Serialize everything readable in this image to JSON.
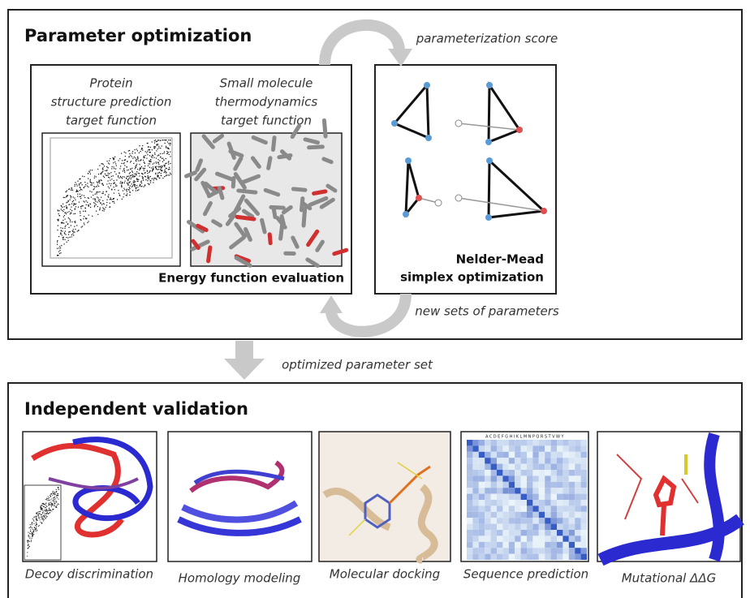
{
  "optimization": {
    "title": "Parameter optimization",
    "protein_target": [
      "Protein",
      "structure prediction",
      "target function"
    ],
    "small_molecule_target": [
      "Small molecule",
      "thermodynamics",
      "target function"
    ],
    "energy_label": "Energy function evaluation",
    "score_label": "parameterization score",
    "simplex_label": [
      "Nelder-Mead",
      "simplex optimization"
    ],
    "new_params_label": "new sets of parameters"
  },
  "flow_label": "optimized parameter set",
  "validation": {
    "title": "Independent validation",
    "matrix_header": "ACDEFGHIKLMNPQRSTVWY",
    "panels": [
      {
        "caption": "Decoy discrimination"
      },
      {
        "caption": "Homology modeling"
      },
      {
        "caption": "Molecular docking"
      },
      {
        "caption": "Sequence prediction"
      },
      {
        "caption": "Mutational ΔΔG"
      }
    ]
  }
}
